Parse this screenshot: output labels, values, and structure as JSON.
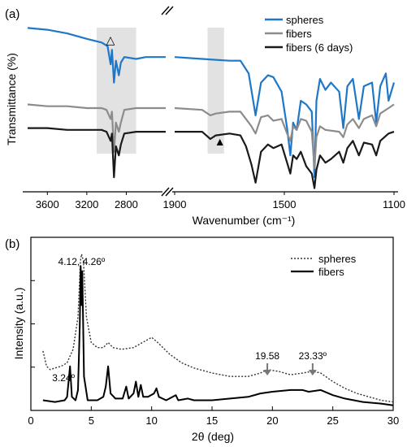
{
  "chart_data": [
    {
      "panel_label": "(a)",
      "type": "line",
      "xlabel": "Wavenumber (cm⁻¹)",
      "ylabel": "Transmittance (%)",
      "x_axis": {
        "reversed": true,
        "broken": true,
        "left_range": [
          3800,
          2400
        ],
        "right_range": [
          1900,
          1100
        ],
        "left_ticks": [
          "3600",
          "3200",
          "2800"
        ],
        "right_ticks": [
          "1900",
          "1500",
          "1100"
        ]
      },
      "legend": {
        "position": "top-right",
        "entries": [
          {
            "name": "spheres",
            "color": "#1f77c8"
          },
          {
            "name": "fibers",
            "color": "#8c8c8c"
          },
          {
            "name": "fibers (6 days)",
            "color": "#1a1a1a"
          }
        ]
      },
      "highlights": [
        {
          "x_range": [
            3100,
            2700
          ],
          "color": "#e2e2e2"
        },
        {
          "x_range": [
            1780,
            1720
          ],
          "color": "#e2e2e2"
        }
      ],
      "markers": [
        {
          "symbol": "△",
          "x": 2960,
          "series": "spheres"
        },
        {
          "symbol": "▲",
          "x": 1735,
          "series": "fibers (6 days)"
        }
      ],
      "series": [
        {
          "name": "spheres",
          "color": "#1f77c8",
          "points": [
            [
              3800,
              0.9
            ],
            [
              3600,
              0.89
            ],
            [
              3400,
              0.87
            ],
            [
              3200,
              0.84
            ],
            [
              3050,
              0.82
            ],
            [
              2990,
              0.8
            ],
            [
              2958,
              0.7
            ],
            [
              2945,
              0.78
            ],
            [
              2925,
              0.6
            ],
            [
              2905,
              0.72
            ],
            [
              2875,
              0.64
            ],
            [
              2855,
              0.71
            ],
            [
              2820,
              0.74
            ],
            [
              2700,
              0.73
            ],
            [
              2600,
              0.74
            ],
            [
              2400,
              0.74
            ],
            [
              1900,
              0.74
            ],
            [
              1800,
              0.73
            ],
            [
              1700,
              0.72
            ],
            [
              1660,
              0.72
            ],
            [
              1630,
              0.65
            ],
            [
              1605,
              0.42
            ],
            [
              1585,
              0.6
            ],
            [
              1560,
              0.64
            ],
            [
              1540,
              0.63
            ],
            [
              1510,
              0.55
            ],
            [
              1490,
              0.35
            ],
            [
              1478,
              0.2
            ],
            [
              1468,
              0.38
            ],
            [
              1455,
              0.34
            ],
            [
              1440,
              0.5
            ],
            [
              1420,
              0.48
            ],
            [
              1400,
              0.44
            ],
            [
              1390,
              0.08
            ],
            [
              1383,
              0.5
            ],
            [
              1370,
              0.62
            ],
            [
              1350,
              0.56
            ],
            [
              1330,
              0.6
            ],
            [
              1300,
              0.55
            ],
            [
              1285,
              0.35
            ],
            [
              1270,
              0.58
            ],
            [
              1250,
              0.62
            ],
            [
              1228,
              0.4
            ],
            [
              1210,
              0.58
            ],
            [
              1180,
              0.6
            ],
            [
              1165,
              0.38
            ],
            [
              1150,
              0.58
            ],
            [
              1130,
              0.65
            ],
            [
              1120,
              0.5
            ],
            [
              1110,
              0.55
            ],
            [
              1100,
              0.6
            ]
          ]
        },
        {
          "name": "fibers",
          "color": "#8c8c8c",
          "points": [
            [
              3800,
              0.48
            ],
            [
              3600,
              0.47
            ],
            [
              3400,
              0.47
            ],
            [
              3200,
              0.46
            ],
            [
              3050,
              0.46
            ],
            [
              3000,
              0.45
            ],
            [
              2958,
              0.4
            ],
            [
              2945,
              0.44
            ],
            [
              2925,
              0.22
            ],
            [
              2905,
              0.38
            ],
            [
              2875,
              0.33
            ],
            [
              2855,
              0.38
            ],
            [
              2820,
              0.45
            ],
            [
              2700,
              0.46
            ],
            [
              2400,
              0.46
            ],
            [
              1900,
              0.46
            ],
            [
              1800,
              0.45
            ],
            [
              1770,
              0.42
            ],
            [
              1750,
              0.43
            ],
            [
              1700,
              0.44
            ],
            [
              1660,
              0.44
            ],
            [
              1640,
              0.4
            ],
            [
              1620,
              0.36
            ],
            [
              1605,
              0.32
            ],
            [
              1585,
              0.41
            ],
            [
              1560,
              0.42
            ],
            [
              1540,
              0.39
            ],
            [
              1510,
              0.4
            ],
            [
              1490,
              0.32
            ],
            [
              1478,
              0.28
            ],
            [
              1468,
              0.36
            ],
            [
              1455,
              0.34
            ],
            [
              1440,
              0.4
            ],
            [
              1420,
              0.39
            ],
            [
              1400,
              0.33
            ],
            [
              1390,
              0.13
            ],
            [
              1383,
              0.3
            ],
            [
              1370,
              0.36
            ],
            [
              1350,
              0.34
            ],
            [
              1300,
              0.33
            ],
            [
              1285,
              0.3
            ],
            [
              1270,
              0.37
            ],
            [
              1250,
              0.4
            ],
            [
              1228,
              0.35
            ],
            [
              1210,
              0.4
            ],
            [
              1180,
              0.42
            ],
            [
              1165,
              0.36
            ],
            [
              1150,
              0.43
            ],
            [
              1120,
              0.46
            ],
            [
              1100,
              0.48
            ]
          ]
        },
        {
          "name": "fibers (6 days)",
          "color": "#1a1a1a",
          "points": [
            [
              3800,
              0.35
            ],
            [
              3600,
              0.35
            ],
            [
              3400,
              0.34
            ],
            [
              3200,
              0.34
            ],
            [
              3050,
              0.34
            ],
            [
              3000,
              0.33
            ],
            [
              2958,
              0.28
            ],
            [
              2945,
              0.32
            ],
            [
              2925,
              0.08
            ],
            [
              2905,
              0.25
            ],
            [
              2875,
              0.2
            ],
            [
              2855,
              0.26
            ],
            [
              2820,
              0.32
            ],
            [
              2700,
              0.33
            ],
            [
              2400,
              0.33
            ],
            [
              1900,
              0.33
            ],
            [
              1800,
              0.33
            ],
            [
              1770,
              0.29
            ],
            [
              1750,
              0.31
            ],
            [
              1700,
              0.32
            ],
            [
              1660,
              0.31
            ],
            [
              1640,
              0.25
            ],
            [
              1620,
              0.15
            ],
            [
              1605,
              0.05
            ],
            [
              1585,
              0.22
            ],
            [
              1560,
              0.26
            ],
            [
              1540,
              0.24
            ],
            [
              1510,
              0.26
            ],
            [
              1490,
              0.16
            ],
            [
              1478,
              0.1
            ],
            [
              1468,
              0.2
            ],
            [
              1455,
              0.18
            ],
            [
              1440,
              0.22
            ],
            [
              1420,
              0.14
            ],
            [
              1400,
              0.1
            ],
            [
              1390,
              0.02
            ],
            [
              1383,
              0.12
            ],
            [
              1370,
              0.2
            ],
            [
              1350,
              0.16
            ],
            [
              1330,
              0.18
            ],
            [
              1300,
              0.22
            ],
            [
              1285,
              0.16
            ],
            [
              1270,
              0.24
            ],
            [
              1250,
              0.28
            ],
            [
              1228,
              0.2
            ],
            [
              1210,
              0.27
            ],
            [
              1180,
              0.26
            ],
            [
              1165,
              0.2
            ],
            [
              1150,
              0.28
            ],
            [
              1120,
              0.32
            ],
            [
              1100,
              0.33
            ]
          ]
        }
      ]
    },
    {
      "panel_label": "(b)",
      "type": "line",
      "xlabel": "2θ (deg)",
      "ylabel": "Intensity (a.u.)",
      "xlim": [
        0,
        30
      ],
      "ylim": [
        0,
        1
      ],
      "xticks": [
        0,
        5,
        10,
        15,
        20,
        25,
        30
      ],
      "legend": {
        "position": "top-right",
        "entries": [
          {
            "name": "spheres",
            "style": "dotted",
            "color": "#333333"
          },
          {
            "name": "fibers",
            "style": "solid",
            "color": "#000000"
          }
        ]
      },
      "annotations": [
        {
          "text": "4.12, 4.26º",
          "x": 4.2
        },
        {
          "text": "3.24º",
          "x": 3.24
        },
        {
          "text": "19.58",
          "x": 19.58,
          "arrow": true
        },
        {
          "text": "23.33º",
          "x": 23.33,
          "arrow": true
        }
      ],
      "series": [
        {
          "name": "spheres",
          "style": "dotted",
          "color": "#333333",
          "points": [
            [
              1.0,
              0.35
            ],
            [
              1.3,
              0.26
            ],
            [
              1.6,
              0.24
            ],
            [
              2.0,
              0.25
            ],
            [
              2.5,
              0.26
            ],
            [
              3.0,
              0.28
            ],
            [
              3.24,
              0.32
            ],
            [
              3.5,
              0.36
            ],
            [
              3.9,
              0.55
            ],
            [
              4.1,
              0.88
            ],
            [
              4.2,
              0.92
            ],
            [
              4.35,
              0.88
            ],
            [
              4.6,
              0.55
            ],
            [
              5.0,
              0.4
            ],
            [
              5.5,
              0.37
            ],
            [
              6.0,
              0.37
            ],
            [
              6.4,
              0.4
            ],
            [
              6.8,
              0.37
            ],
            [
              7.5,
              0.36
            ],
            [
              8.5,
              0.37
            ],
            [
              9.5,
              0.41
            ],
            [
              10.0,
              0.43
            ],
            [
              10.5,
              0.4
            ],
            [
              11.5,
              0.33
            ],
            [
              12.5,
              0.28
            ],
            [
              13.5,
              0.25
            ],
            [
              15.0,
              0.22
            ],
            [
              16.5,
              0.2
            ],
            [
              18.0,
              0.2
            ],
            [
              19.0,
              0.22
            ],
            [
              19.58,
              0.24
            ],
            [
              20.5,
              0.23
            ],
            [
              21.5,
              0.21
            ],
            [
              22.5,
              0.22
            ],
            [
              23.33,
              0.23
            ],
            [
              24.0,
              0.22
            ],
            [
              25.0,
              0.17
            ],
            [
              26.0,
              0.13
            ],
            [
              27.0,
              0.1
            ],
            [
              28.0,
              0.08
            ],
            [
              29.0,
              0.06
            ],
            [
              30.0,
              0.05
            ]
          ]
        },
        {
          "name": "fibers",
          "style": "solid",
          "color": "#000000",
          "points": [
            [
              1.0,
              0.06
            ],
            [
              2.0,
              0.05
            ],
            [
              2.8,
              0.06
            ],
            [
              3.0,
              0.08
            ],
            [
              3.24,
              0.26
            ],
            [
              3.4,
              0.08
            ],
            [
              3.7,
              0.06
            ],
            [
              3.9,
              0.12
            ],
            [
              4.05,
              0.5
            ],
            [
              4.12,
              0.85
            ],
            [
              4.2,
              0.62
            ],
            [
              4.26,
              0.82
            ],
            [
              4.4,
              0.2
            ],
            [
              4.7,
              0.06
            ],
            [
              5.5,
              0.06
            ],
            [
              6.0,
              0.08
            ],
            [
              6.2,
              0.14
            ],
            [
              6.4,
              0.26
            ],
            [
              6.6,
              0.1
            ],
            [
              7.0,
              0.07
            ],
            [
              7.6,
              0.07
            ],
            [
              7.9,
              0.14
            ],
            [
              8.1,
              0.07
            ],
            [
              8.5,
              0.1
            ],
            [
              8.7,
              0.17
            ],
            [
              8.9,
              0.08
            ],
            [
              9.1,
              0.15
            ],
            [
              9.3,
              0.08
            ],
            [
              9.7,
              0.08
            ],
            [
              10.2,
              0.1
            ],
            [
              10.4,
              0.13
            ],
            [
              10.6,
              0.08
            ],
            [
              11.2,
              0.06
            ],
            [
              12.0,
              0.09
            ],
            [
              12.2,
              0.06
            ],
            [
              13.0,
              0.07
            ],
            [
              13.5,
              0.06
            ],
            [
              15.0,
              0.06
            ],
            [
              16.5,
              0.07
            ],
            [
              18.0,
              0.08
            ],
            [
              19.0,
              0.1
            ],
            [
              20.0,
              0.11
            ],
            [
              21.5,
              0.12
            ],
            [
              22.5,
              0.12
            ],
            [
              23.0,
              0.11
            ],
            [
              24.0,
              0.12
            ],
            [
              25.0,
              0.09
            ],
            [
              26.0,
              0.07
            ],
            [
              27.5,
              0.05
            ],
            [
              29.0,
              0.04
            ],
            [
              30.0,
              0.03
            ]
          ]
        }
      ]
    }
  ]
}
